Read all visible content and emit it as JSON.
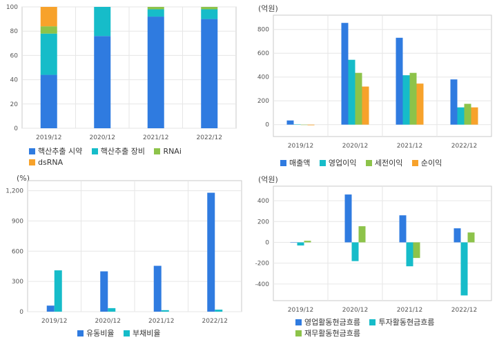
{
  "colors": {
    "blue": "#2f7be0",
    "teal": "#16bcc9",
    "green": "#8dc34a",
    "orange": "#f7a22b",
    "grid": "#e6e6e6",
    "axis": "#c9c9c9"
  },
  "chart_data": [
    {
      "id": "tl",
      "type": "bar",
      "stacked": true,
      "unit_label": "",
      "categories": [
        "2019/12",
        "2020/12",
        "2021/12",
        "2022/12"
      ],
      "ylim": [
        0,
        100
      ],
      "yticks": [
        0,
        20,
        40,
        60,
        80,
        100
      ],
      "ytick_labels": [
        "0",
        "20",
        "40",
        "60",
        "80",
        "100"
      ],
      "series": [
        {
          "name": "핵산추출 시약",
          "color": "#2f7be0",
          "values": [
            44,
            76,
            92,
            90
          ]
        },
        {
          "name": "핵산추출 장비",
          "color": "#16bcc9",
          "values": [
            34,
            24,
            6,
            8
          ]
        },
        {
          "name": "RNAi",
          "color": "#8dc34a",
          "values": [
            6,
            0,
            2,
            2
          ]
        },
        {
          "name": "dsRNA",
          "color": "#f7a22b",
          "values": [
            16,
            0,
            0,
            0
          ]
        }
      ],
      "grid": true,
      "legend": "bottom"
    },
    {
      "id": "tr",
      "type": "bar",
      "stacked": false,
      "unit_label": "(억원)",
      "categories": [
        "2019/12",
        "2020/12",
        "2021/12",
        "2022/12"
      ],
      "ylim": [
        -100,
        920
      ],
      "yticks": [
        0,
        200,
        400,
        600,
        800
      ],
      "ytick_labels": [
        "0",
        "200",
        "400",
        "600",
        "800"
      ],
      "series": [
        {
          "name": "매출액",
          "color": "#2f7be0",
          "values": [
            35,
            855,
            730,
            380
          ]
        },
        {
          "name": "영업이익",
          "color": "#16bcc9",
          "values": [
            2,
            545,
            415,
            145
          ]
        },
        {
          "name": "세전이익",
          "color": "#8dc34a",
          "values": [
            -3,
            435,
            435,
            175
          ]
        },
        {
          "name": "순이익",
          "color": "#f7a22b",
          "values": [
            -5,
            320,
            345,
            145
          ]
        }
      ],
      "grid": true,
      "legend": "bottom"
    },
    {
      "id": "bl",
      "type": "bar",
      "stacked": false,
      "unit_label": "(%)",
      "categories": [
        "2019/12",
        "2020/12",
        "2021/12",
        "2022/12"
      ],
      "ylim": [
        0,
        1300
      ],
      "yticks": [
        0,
        300,
        600,
        900,
        1200
      ],
      "ytick_labels": [
        "0",
        "300",
        "600",
        "900",
        "1,200"
      ],
      "series": [
        {
          "name": "유동비율",
          "color": "#2f7be0",
          "values": [
            60,
            400,
            455,
            1180
          ]
        },
        {
          "name": "부채비율",
          "color": "#16bcc9",
          "values": [
            410,
            35,
            15,
            20
          ]
        }
      ],
      "grid": true,
      "legend": "bottom"
    },
    {
      "id": "br",
      "type": "bar",
      "stacked": false,
      "unit_label": "(억원)",
      "categories": [
        "2019/12",
        "2020/12",
        "2021/12",
        "2022/12"
      ],
      "ylim": [
        -560,
        540
      ],
      "yticks": [
        -400,
        -200,
        0,
        200,
        400
      ],
      "ytick_labels": [
        "-400",
        "-200",
        "0",
        "200",
        "400"
      ],
      "series": [
        {
          "name": "영업활동현금흐름",
          "color": "#2f7be0",
          "values": [
            0,
            460,
            260,
            135
          ]
        },
        {
          "name": "투자활동현금흐름",
          "color": "#16bcc9",
          "values": [
            -30,
            -180,
            -230,
            -510
          ]
        },
        {
          "name": "재무활동현금흐름",
          "color": "#8dc34a",
          "values": [
            15,
            155,
            -150,
            95
          ]
        }
      ],
      "grid": true,
      "legend": "bottom"
    }
  ]
}
